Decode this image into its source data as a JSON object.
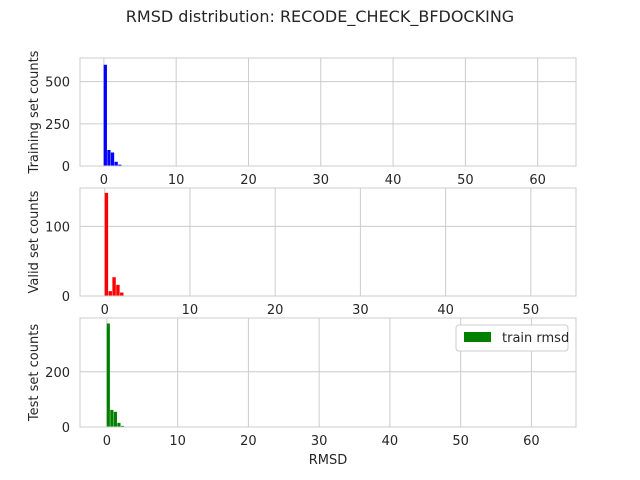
{
  "title": "RMSD distribution: RECODE_CHECK_BFDOCKING",
  "chart_data": [
    {
      "type": "bar",
      "ylabel": "Training set counts",
      "xlabel": "",
      "color": "#0000ff",
      "xlim": [
        -3.3,
        65.3
      ],
      "ylim": [
        0,
        640
      ],
      "xticks": [
        0,
        10,
        20,
        30,
        40,
        50,
        60
      ],
      "yticks": [
        0,
        250,
        500
      ],
      "grid": true,
      "bin_width": 0.45,
      "bins": [
        {
          "x": 0.2,
          "value": 600
        },
        {
          "x": 0.7,
          "value": 95
        },
        {
          "x": 1.2,
          "value": 80
        },
        {
          "x": 1.7,
          "value": 25
        },
        {
          "x": 2.2,
          "value": 8
        },
        {
          "x": 2.7,
          "value": 2
        }
      ]
    },
    {
      "type": "bar",
      "ylabel": "Valid set counts",
      "xlabel": "",
      "color": "#ff0000",
      "xlim": [
        -2.9,
        55.3
      ],
      "ylim": [
        0,
        155
      ],
      "xticks": [
        0,
        10,
        20,
        30,
        40,
        50
      ],
      "yticks": [
        0,
        100
      ],
      "grid": true,
      "bin_width": 0.4,
      "bins": [
        {
          "x": 0.2,
          "value": 148
        },
        {
          "x": 0.65,
          "value": 7
        },
        {
          "x": 1.1,
          "value": 27
        },
        {
          "x": 1.55,
          "value": 16
        },
        {
          "x": 2.0,
          "value": 5
        }
      ]
    },
    {
      "type": "bar",
      "ylabel": "Test set counts",
      "xlabel": "RMSD",
      "color": "#008000",
      "xlim": [
        -3.8,
        66.3
      ],
      "ylim": [
        0,
        395
      ],
      "xticks": [
        0,
        10,
        20,
        30,
        40,
        50,
        60
      ],
      "yticks": [
        0,
        200
      ],
      "grid": true,
      "bin_width": 0.45,
      "legend": {
        "label": "train rmsd",
        "placement": "top-right"
      },
      "bins": [
        {
          "x": 0.2,
          "value": 375
        },
        {
          "x": 0.7,
          "value": 62
        },
        {
          "x": 1.2,
          "value": 55
        },
        {
          "x": 1.7,
          "value": 15
        },
        {
          "x": 2.2,
          "value": 4
        }
      ]
    }
  ]
}
